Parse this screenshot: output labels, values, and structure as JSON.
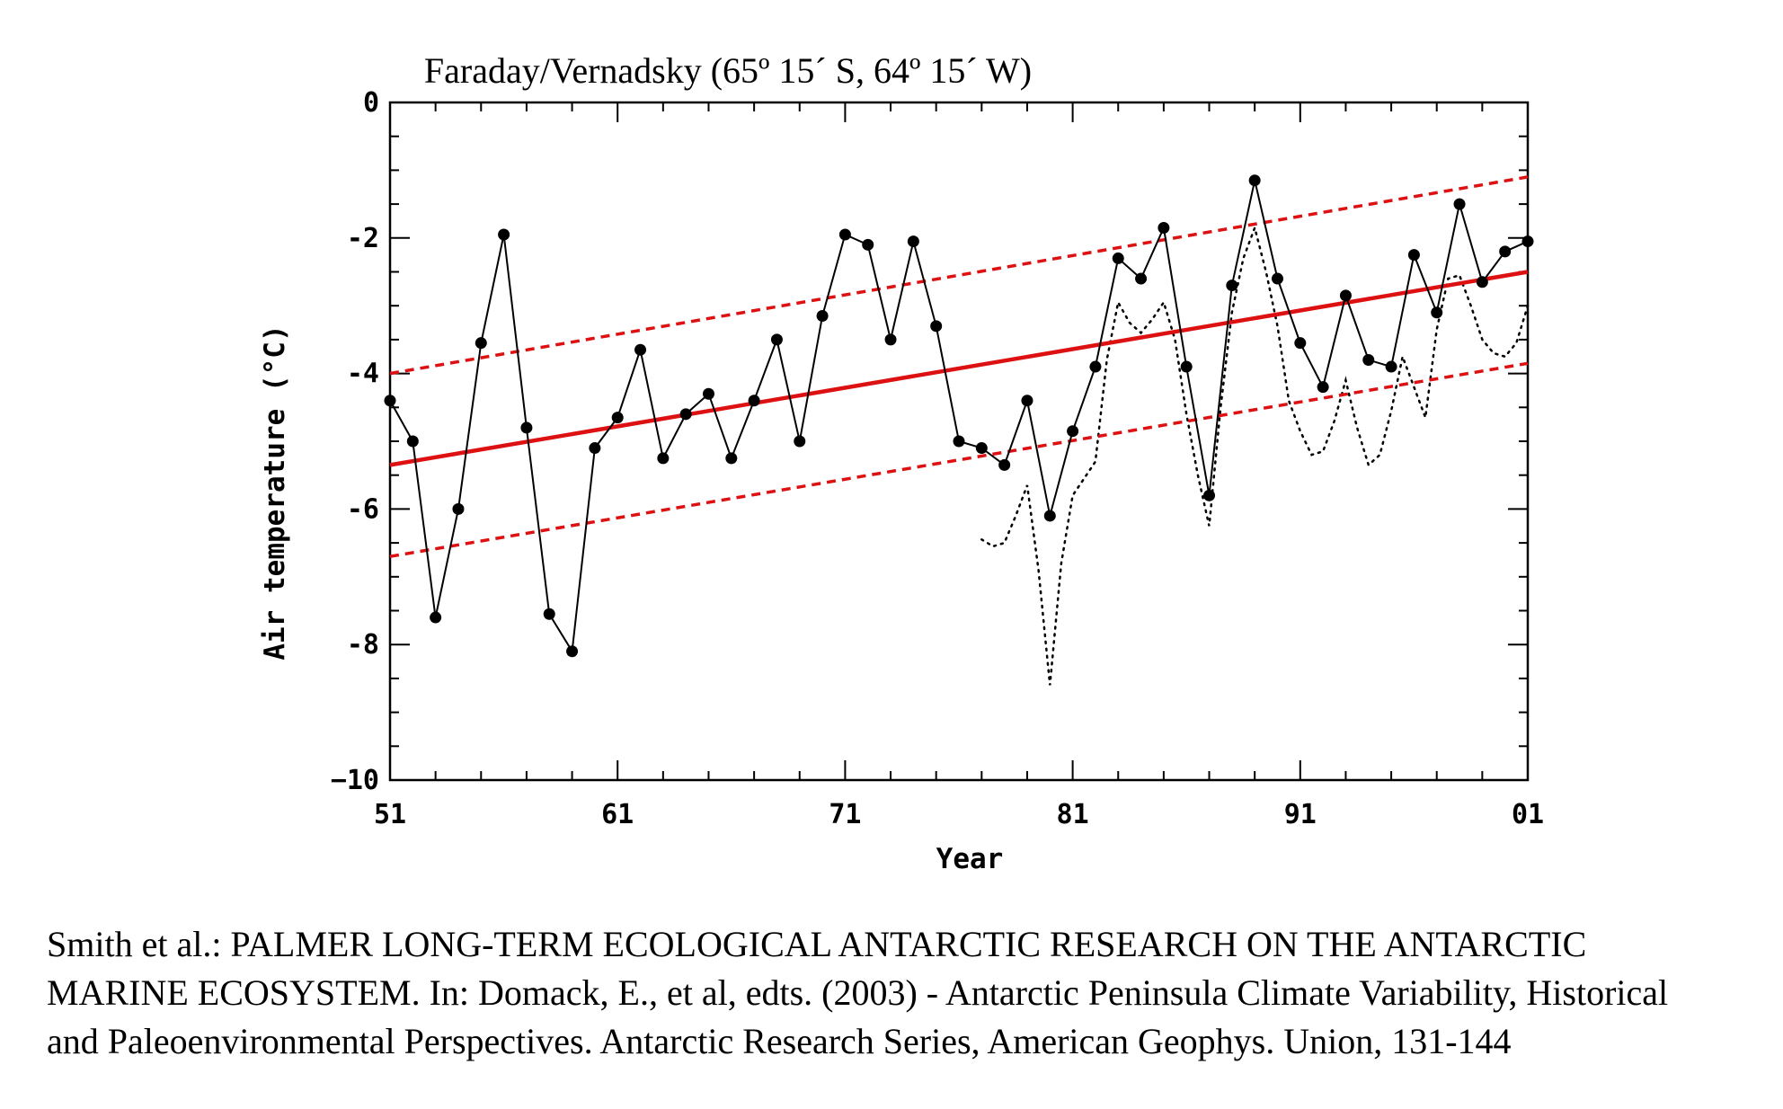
{
  "chart_data": {
    "type": "line",
    "title": "Faraday/Vernadsky (65º 15´ S, 64º 15´ W)",
    "xlabel": "Year",
    "ylabel": "Air temperature (°C)",
    "xlim": [
      1951,
      2001
    ],
    "ylim": [
      -10,
      0
    ],
    "x_ticks": [
      1951,
      1961,
      1971,
      1981,
      1991,
      2001
    ],
    "x_tick_labels": [
      "51",
      "61",
      "71",
      "81",
      "91",
      "01"
    ],
    "y_ticks": [
      0,
      -2,
      -4,
      -6,
      -8,
      -10
    ],
    "y_tick_labels": [
      "0",
      "-2",
      "-4",
      "-6",
      "-8",
      "−10"
    ],
    "grid": false,
    "series": [
      {
        "style": "solid black line with filled circle markers",
        "color": "#000000",
        "x": [
          1951,
          1952,
          1953,
          1954,
          1955,
          1956,
          1957,
          1958,
          1959,
          1960,
          1961,
          1962,
          1963,
          1964,
          1965,
          1966,
          1967,
          1968,
          1969,
          1970,
          1971,
          1972,
          1973,
          1974,
          1975,
          1976,
          1977,
          1978,
          1979,
          1980,
          1981,
          1982,
          1983,
          1984,
          1985,
          1986,
          1987,
          1988,
          1989,
          1990,
          1991,
          1992,
          1993,
          1994,
          1995,
          1996,
          1997,
          1998,
          1999,
          2000,
          2001
        ],
        "y": [
          -4.4,
          -5.0,
          -7.6,
          -6.0,
          -3.55,
          -1.95,
          -4.8,
          -7.55,
          -8.1,
          -5.1,
          -4.65,
          -3.65,
          -5.25,
          -4.6,
          -4.3,
          -5.25,
          -4.4,
          -3.5,
          -5.0,
          -3.15,
          -1.95,
          -2.1,
          -3.5,
          -2.05,
          -3.3,
          -5.0,
          -5.1,
          -5.35,
          -4.4,
          -6.1,
          -4.85,
          -3.9,
          -2.3,
          -2.6,
          -1.85,
          -3.9,
          -5.8,
          -2.7,
          -1.15,
          -2.6,
          -3.55,
          -4.2,
          -2.85,
          -3.8,
          -3.9,
          -2.25,
          -3.1,
          -1.5,
          -2.65,
          -2.2,
          -2.05
        ]
      },
      {
        "style": "black dotted line",
        "color": "#000000",
        "x": [
          1977,
          1977.5,
          1978,
          1978.5,
          1979,
          1979.5,
          1980,
          1980.5,
          1981,
          1981.5,
          1982,
          1982.5,
          1983,
          1983.5,
          1984,
          1984.5,
          1985,
          1985.5,
          1986,
          1986.5,
          1987,
          1987.5,
          1988,
          1988.5,
          1989,
          1989.5,
          1990,
          1990.5,
          1991,
          1991.5,
          1992,
          1992.5,
          1993,
          1993.5,
          1994,
          1994.5,
          1995,
          1995.5,
          1996,
          1996.5,
          1997,
          1997.5,
          1998,
          1998.5,
          1999,
          1999.5,
          2000,
          2000.5,
          2001
        ],
        "y": [
          -6.45,
          -6.55,
          -6.5,
          -6.1,
          -5.65,
          -6.9,
          -8.6,
          -6.8,
          -5.8,
          -5.55,
          -5.3,
          -3.8,
          -2.95,
          -3.25,
          -3.4,
          -3.2,
          -2.95,
          -3.5,
          -4.6,
          -5.5,
          -6.25,
          -4.5,
          -3.1,
          -2.3,
          -1.85,
          -2.5,
          -3.3,
          -4.4,
          -4.85,
          -5.2,
          -5.15,
          -4.7,
          -4.1,
          -4.8,
          -5.35,
          -5.2,
          -4.55,
          -3.75,
          -4.2,
          -4.65,
          -3.35,
          -2.6,
          -2.55,
          -3.0,
          -3.5,
          -3.7,
          -3.75,
          -3.55,
          -3.0
        ]
      },
      {
        "style": "solid red trend line",
        "color": "#dd1111",
        "x": [
          1951,
          2001
        ],
        "y": [
          -5.35,
          -2.5
        ]
      },
      {
        "style": "dashed red upper bound",
        "color": "#dd1111",
        "x": [
          1951,
          2001
        ],
        "y": [
          -4.0,
          -1.1
        ]
      },
      {
        "style": "dashed red lower bound",
        "color": "#dd1111",
        "x": [
          1951,
          2001
        ],
        "y": [
          -6.7,
          -3.85
        ]
      }
    ]
  },
  "caption": {
    "line1": "Smith et al.: PALMER LONG-TERM ECOLOGICAL ANTARCTIC RESEARCH ON THE ANTARCTIC",
    "line2": "MARINE ECOSYSTEM. In: Domack, E., et al, edts. (2003) - Antarctic Peninsula Climate Variability, Historical",
    "line3": "and Paleoenvironmental Perspectives. Antarctic Research Series, American Geophys. Union, 131-144"
  }
}
